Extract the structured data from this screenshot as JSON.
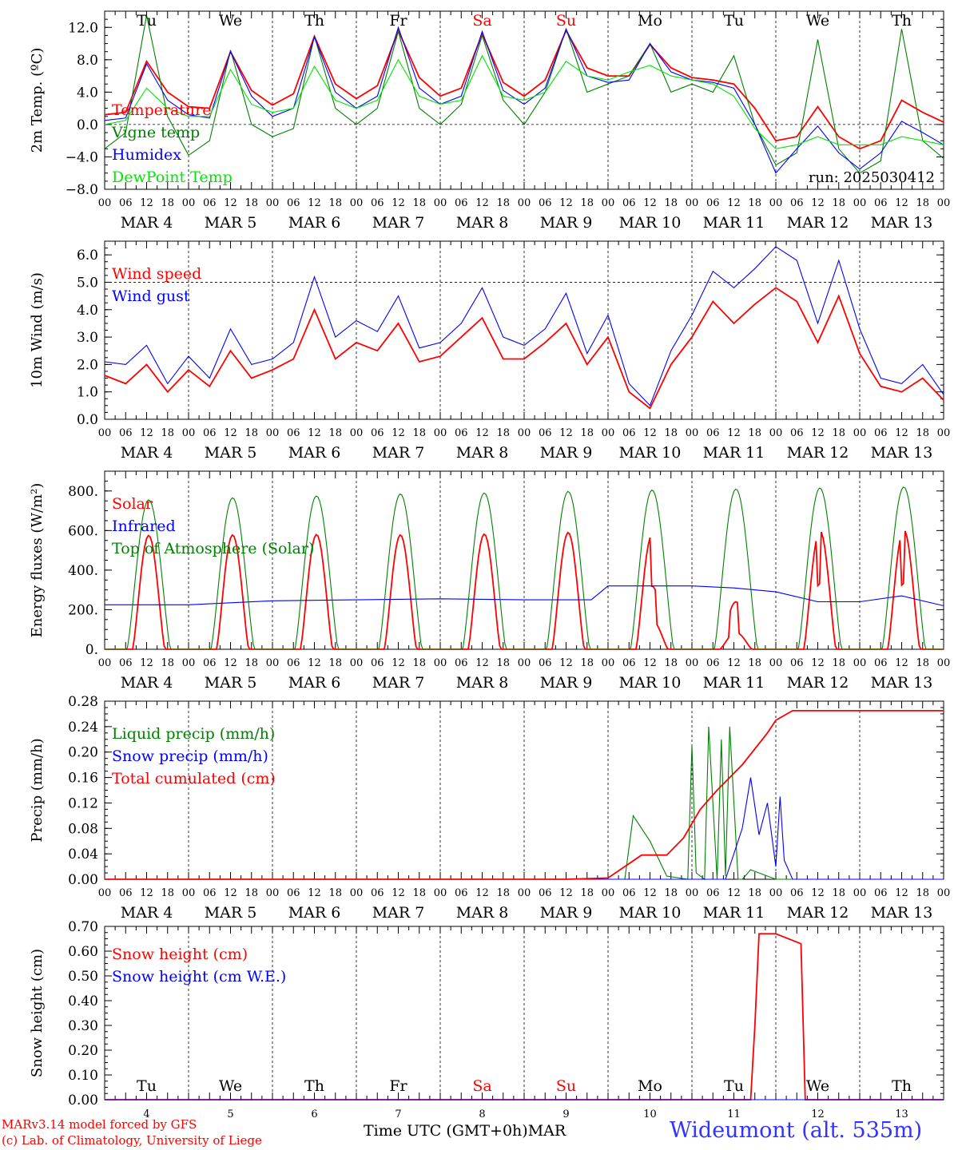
{
  "colors": {
    "red": "#ff0000",
    "green": "#008000",
    "blue": "#0000ff",
    "lightgreen": "#00e600"
  },
  "run_label": "run: 2025030412",
  "time_axis": {
    "hour_ticks": [
      "00",
      "06",
      "12",
      "18"
    ],
    "final_hour": "00",
    "dates": [
      "MAR  4",
      "MAR  5",
      "MAR  6",
      "MAR  7",
      "MAR  8",
      "MAR  9",
      "MAR 10",
      "MAR 11",
      "MAR 12",
      "MAR 13"
    ],
    "days": [
      "Tu",
      "We",
      "Th",
      "Fr",
      "Sa",
      "Su",
      "Mo",
      "Tu",
      "We",
      "Th"
    ],
    "weekend": [
      false,
      false,
      false,
      false,
      true,
      true,
      false,
      false,
      false,
      false
    ],
    "day_numbers": [
      "4",
      "5",
      "6",
      "7",
      "8",
      "9",
      "10",
      "11",
      "12",
      "13"
    ],
    "xlabel": "Time UTC (GMT+0h)",
    "month": "MAR"
  },
  "footer": {
    "model": "MARv3.14 model forced by GFS",
    "lab": "(c) Lab. of Climatology, University of Liege",
    "station": "Wideumont (alt. 535m)"
  },
  "chart_data": [
    {
      "type": "line",
      "id": "temperature",
      "ylabel": "2m Temp. (ºC)",
      "ylim": [
        -8,
        14
      ],
      "yticks": [
        "−8.0",
        "−4.0",
        "0.0",
        "4.0",
        "8.0",
        "12.0"
      ],
      "ytick_values": [
        -8,
        -4,
        0,
        4,
        8,
        12
      ],
      "ref_line": 0,
      "x_days": [
        0,
        0.25,
        0.5,
        0.75,
        1,
        1.25,
        1.5,
        1.75,
        2,
        2.25,
        2.5,
        2.75,
        3,
        3.25,
        3.5,
        3.75,
        4,
        4.25,
        4.5,
        4.75,
        5,
        5.25,
        5.5,
        5.75,
        6,
        6.25,
        6.5,
        6.75,
        7,
        7.25,
        7.5,
        7.75,
        8,
        8.25,
        8.5,
        8.75,
        9,
        9.25,
        9.5,
        9.75,
        10
      ],
      "series": [
        {
          "name": "Temperature",
          "color": "red",
          "values": [
            1.2,
            1.5,
            7.8,
            4.0,
            2.2,
            2.0,
            9.0,
            4.2,
            2.4,
            3.8,
            10.9,
            5.0,
            3.2,
            4.8,
            11.6,
            5.8,
            3.5,
            4.5,
            11.2,
            5.2,
            3.5,
            5.5,
            11.6,
            7.0,
            6.0,
            6.0,
            9.9,
            7.0,
            5.8,
            5.5,
            5.0,
            2.0,
            -2.0,
            -1.5,
            2.2,
            -1.5,
            -3.0,
            -2.0,
            3.0,
            1.5,
            0.3
          ]
        },
        {
          "name": "Vigne temp",
          "color": "green",
          "values": [
            -3.0,
            -1.0,
            13.5,
            1.0,
            -3.8,
            -2.0,
            9.2,
            0.0,
            -1.5,
            -0.5,
            10.9,
            2.0,
            0.0,
            2.0,
            11.5,
            2.0,
            0.0,
            2.5,
            11.0,
            3.0,
            0.0,
            4.0,
            11.8,
            4.0,
            5.0,
            6.0,
            10.0,
            4.0,
            5.0,
            4.0,
            8.5,
            0.0,
            -5.0,
            -3.5,
            10.5,
            -3.0,
            -6.0,
            -4.5,
            11.8,
            -2.0,
            -4.2
          ]
        },
        {
          "name": "Humidex",
          "color": "blue",
          "values": [
            0.5,
            0.8,
            7.5,
            3.0,
            1.2,
            0.8,
            9.0,
            3.5,
            1.0,
            2.0,
            10.8,
            4.0,
            2.0,
            3.5,
            12.0,
            4.5,
            2.5,
            3.5,
            11.5,
            4.2,
            2.5,
            4.5,
            11.8,
            6.0,
            5.2,
            5.5,
            10.0,
            6.5,
            5.5,
            5.2,
            4.5,
            0.0,
            -6.0,
            -3.0,
            -0.2,
            -3.5,
            -5.5,
            -3.5,
            0.4,
            -1.0,
            -2.5
          ]
        },
        {
          "name": "DewPoint Temp",
          "color": "lightgreen",
          "values": [
            0.0,
            0.5,
            4.5,
            2.0,
            1.0,
            1.0,
            6.8,
            2.5,
            1.5,
            2.0,
            7.2,
            3.0,
            2.0,
            3.0,
            8.0,
            3.5,
            2.5,
            3.0,
            8.5,
            3.5,
            3.0,
            4.0,
            7.8,
            6.0,
            5.5,
            6.5,
            7.3,
            6.0,
            5.5,
            5.0,
            3.5,
            -0.5,
            -3.0,
            -2.5,
            -1.5,
            -2.5,
            -2.5,
            -2.5,
            -1.5,
            -2.0,
            -2.5
          ]
        }
      ]
    },
    {
      "type": "line",
      "id": "wind",
      "ylabel": "10m Wind (m/s)",
      "ylim": [
        0,
        6.5
      ],
      "yticks": [
        "0.0",
        "1.0",
        "2.0",
        "3.0",
        "4.0",
        "5.0",
        "6.0"
      ],
      "ytick_values": [
        0,
        1,
        2,
        3,
        4,
        5,
        6
      ],
      "ref_line": 5,
      "x_days": [
        0,
        0.25,
        0.5,
        0.75,
        1,
        1.25,
        1.5,
        1.75,
        2,
        2.25,
        2.5,
        2.75,
        3,
        3.25,
        3.5,
        3.75,
        4,
        4.25,
        4.5,
        4.75,
        5,
        5.25,
        5.5,
        5.75,
        6,
        6.25,
        6.5,
        6.75,
        7,
        7.25,
        7.5,
        7.75,
        8,
        8.25,
        8.5,
        8.75,
        9,
        9.25,
        9.5,
        9.75,
        10
      ],
      "series": [
        {
          "name": "Wind speed",
          "color": "red",
          "values": [
            1.6,
            1.3,
            2.0,
            1.0,
            1.8,
            1.2,
            2.5,
            1.5,
            1.8,
            2.2,
            4.0,
            2.2,
            2.8,
            2.5,
            3.5,
            2.1,
            2.3,
            3.0,
            3.7,
            2.2,
            2.2,
            2.8,
            3.5,
            2.0,
            3.0,
            1.0,
            0.4,
            2.0,
            3.0,
            4.3,
            3.5,
            4.2,
            4.8,
            4.3,
            2.8,
            4.5,
            2.4,
            1.2,
            1.0,
            1.5,
            0.7
          ]
        },
        {
          "name": "Wind gust",
          "color": "blue",
          "values": [
            2.1,
            2.0,
            2.7,
            1.3,
            2.3,
            1.5,
            3.3,
            2.0,
            2.2,
            2.8,
            5.2,
            3.0,
            3.6,
            3.2,
            4.5,
            2.6,
            2.8,
            3.5,
            4.8,
            3.0,
            2.7,
            3.3,
            4.6,
            2.4,
            3.8,
            1.3,
            0.5,
            2.5,
            3.8,
            5.4,
            4.8,
            5.5,
            6.3,
            5.8,
            3.5,
            5.8,
            3.3,
            1.5,
            1.3,
            2.0,
            0.9
          ]
        }
      ]
    },
    {
      "type": "line",
      "id": "energy",
      "ylabel": "Energy fluxes (W/m²)",
      "ylim": [
        0,
        900
      ],
      "yticks": [
        "0.",
        "200.",
        "400.",
        "600.",
        "800."
      ],
      "ytick_values": [
        0,
        200,
        400,
        600,
        800
      ],
      "ref_line": null,
      "series": [
        {
          "name": "Solar",
          "color": "red",
          "peaks": [
            575,
            578,
            580,
            578,
            582,
            590,
            580,
            240,
            600,
            605
          ]
        },
        {
          "name": "Infrared",
          "color": "blue",
          "x_days": [
            0,
            1,
            2,
            3,
            4,
            5,
            5.8,
            6,
            6.5,
            7,
            7.5,
            8,
            8.5,
            9,
            9.5,
            10
          ],
          "values": [
            225,
            225,
            245,
            250,
            255,
            250,
            250,
            320,
            320,
            320,
            310,
            290,
            240,
            240,
            270,
            220
          ]
        },
        {
          "name": "Top of Atmosphere (Solar)",
          "color": "green",
          "peaks": [
            755,
            765,
            775,
            785,
            790,
            798,
            805,
            810,
            815,
            820
          ]
        }
      ]
    },
    {
      "type": "line",
      "id": "precip",
      "ylabel": "Precip (mm/h)",
      "ylim": [
        0,
        0.28
      ],
      "yticks": [
        "0.00",
        "0.04",
        "0.08",
        "0.12",
        "0.16",
        "0.20",
        "0.24",
        "0.28"
      ],
      "ytick_values": [
        0,
        0.04,
        0.08,
        0.12,
        0.16,
        0.2,
        0.24,
        0.28
      ],
      "ref_line": null,
      "series": [
        {
          "name": "Liquid precip (mm/h)",
          "color": "green",
          "x_days": [
            0,
            5.9,
            6.0,
            6.2,
            6.3,
            6.5,
            6.7,
            6.95,
            7.0,
            7.05,
            7.15,
            7.2,
            7.3,
            7.35,
            7.4,
            7.45,
            7.55,
            7.6,
            7.7,
            8.0,
            10.0
          ],
          "values": [
            0,
            0,
            0,
            0,
            0.1,
            0.06,
            0.005,
            0,
            0.21,
            0.01,
            0.0,
            0.24,
            0.0,
            0.22,
            0.005,
            0.24,
            0.0,
            0.0,
            0.015,
            0,
            0
          ]
        },
        {
          "name": "Snow precip (mm/h)",
          "color": "blue",
          "x_days": [
            0,
            7.4,
            7.5,
            7.6,
            7.7,
            7.8,
            7.9,
            8.0,
            8.05,
            8.1,
            8.2,
            9.5,
            10.0
          ],
          "values": [
            0,
            0,
            0.04,
            0.08,
            0.16,
            0.07,
            0.12,
            0.02,
            0.13,
            0.03,
            0,
            0,
            0
          ]
        },
        {
          "name": "Total cumulated (cm)",
          "color": "red",
          "x_days": [
            0,
            5.5,
            6.0,
            6.4,
            6.7,
            6.9,
            7.1,
            7.3,
            7.6,
            7.9,
            8.0,
            8.2,
            8.6,
            10.0
          ],
          "values": [
            0,
            0,
            0.002,
            0.038,
            0.038,
            0.065,
            0.11,
            0.14,
            0.18,
            0.23,
            0.25,
            0.265,
            0.265,
            0.265
          ]
        }
      ]
    },
    {
      "type": "line",
      "id": "snow",
      "ylabel": "Snow height (cm)",
      "ylim": [
        0,
        0.7
      ],
      "yticks": [
        "0.00",
        "0.10",
        "0.20",
        "0.30",
        "0.40",
        "0.50",
        "0.60",
        "0.70"
      ],
      "ytick_values": [
        0,
        0.1,
        0.2,
        0.3,
        0.4,
        0.5,
        0.6,
        0.7
      ],
      "ref_line": null,
      "series": [
        {
          "name": "Snow height (cm)",
          "color": "red",
          "x_days": [
            0,
            7.7,
            7.75,
            7.8,
            8.0,
            8.3,
            8.35,
            10.0
          ],
          "values": [
            0,
            0,
            0.3,
            0.67,
            0.67,
            0.63,
            0,
            0
          ]
        },
        {
          "name": "Snow height (cm W.E.)",
          "color": "blue",
          "x_days": [
            0,
            10
          ],
          "values": [
            0,
            0
          ]
        }
      ]
    }
  ]
}
